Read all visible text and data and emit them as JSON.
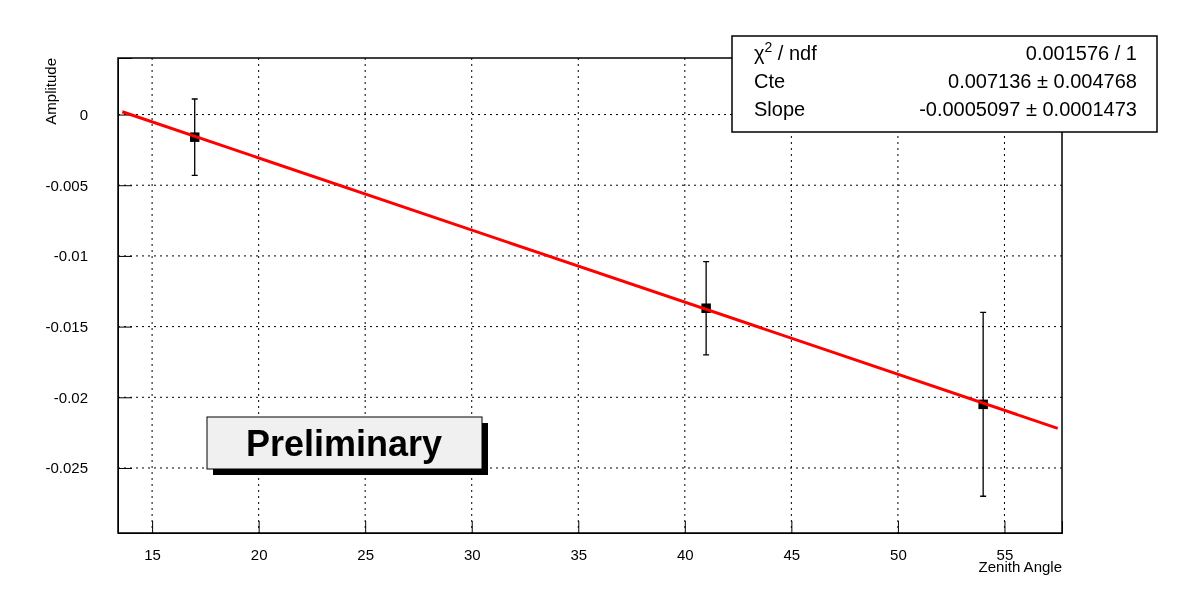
{
  "chart_data": {
    "type": "scatter",
    "xlabel": "Zenith Angle",
    "ylabel": "Amplitude",
    "xlim": [
      13.4,
      57.7
    ],
    "ylim": [
      -0.0296,
      0.004
    ],
    "xticks": [
      15,
      20,
      25,
      30,
      35,
      40,
      45,
      50,
      55
    ],
    "yticks": [
      -0.025,
      -0.02,
      -0.015,
      -0.01,
      -0.005,
      0
    ],
    "grid": true,
    "marker": "square",
    "series": [
      {
        "color": "#000000",
        "x": [
          17,
          41,
          54
        ],
        "values": [
          -0.0016,
          -0.0137,
          -0.0205
        ],
        "errors": [
          0.0027,
          0.0033,
          0.0065
        ]
      },
      {
        "type": "line",
        "color": "#ff0000",
        "marker": "none",
        "line_style": "solid",
        "x": [
          13.6,
          57.5
        ],
        "values": [
          0.0002,
          -0.0222
        ]
      }
    ],
    "annotations": [
      "χ$^{2}$ / ndf",
      "0.001576 / 1",
      "Cte",
      "0.007136 ± 0.004768",
      "Slope",
      "-0.0005097 ± 0.0001473",
      "Preliminary"
    ]
  }
}
